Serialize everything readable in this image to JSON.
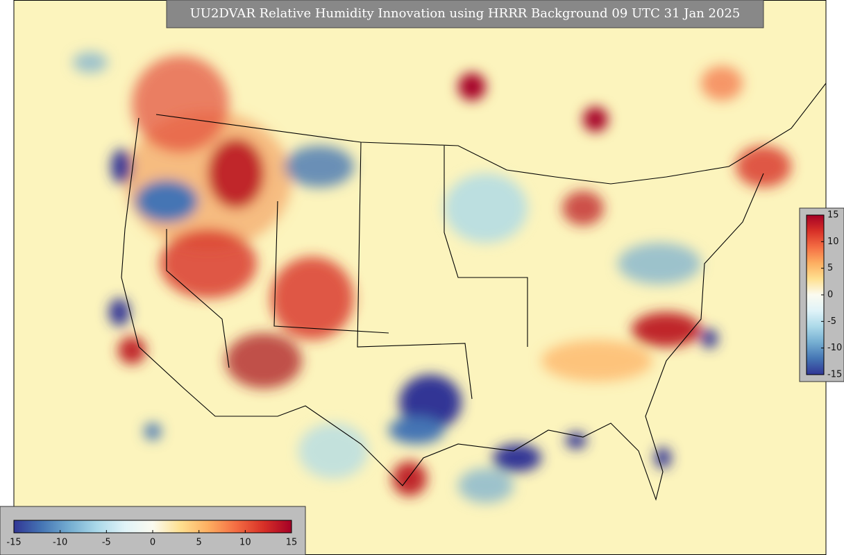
{
  "title": "UU2DVAR Relative Humidity Innovation using HRRR Background 09 UTC 31 Jan 2025",
  "colorbar": {
    "range": [
      -15,
      15
    ],
    "colors": [
      "#313695",
      "#4575b4",
      "#74add1",
      "#abd9e9",
      "#e0f3f8",
      "#fbfbf0",
      "#fee090",
      "#fdae61",
      "#f46d43",
      "#d73027",
      "#a50026"
    ],
    "ticks": [
      -15,
      -10,
      -5,
      0,
      5,
      10,
      15
    ]
  }
}
